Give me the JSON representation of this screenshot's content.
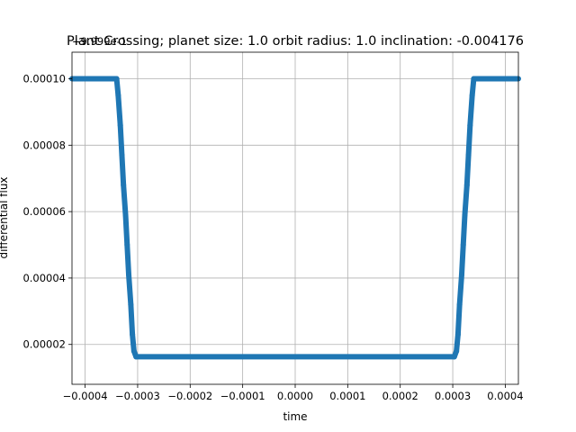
{
  "chart_data": {
    "type": "scatter",
    "title": "Plant Crossing; planet size: 1.0 orbit radius: 1.0 inclination: -0.004176",
    "xlabel": "time",
    "ylabel": "differential flux",
    "y_offset_label": "+9.999e-1",
    "xlim": [
      -0.000425,
      0.000425
    ],
    "ylim": [
      8e-06,
      0.000108
    ],
    "grid": true,
    "x_ticks": [
      -0.0004,
      -0.0003,
      -0.0002,
      -0.0001,
      0.0,
      0.0001,
      0.0002,
      0.0003,
      0.0004
    ],
    "x_tick_labels": [
      "−0.0004",
      "−0.0003",
      "−0.0002",
      "−0.0001",
      "0.0000",
      "0.0001",
      "0.0002",
      "0.0003",
      "0.0004"
    ],
    "y_ticks": [
      2e-05,
      4e-05,
      6e-05,
      8e-05,
      0.0001
    ],
    "y_tick_labels": [
      "0.00002",
      "0.00004",
      "0.00006",
      "0.00008",
      "0.00010"
    ],
    "series": [
      {
        "color": "#1f77b4",
        "x": [
          -0.000425,
          -0.00034,
          -0.000337,
          -0.000333,
          -0.00033,
          -0.000327,
          -0.000323,
          -0.00032,
          -0.000317,
          -0.000313,
          -0.00031,
          -0.000307,
          -0.000303,
          0.000303,
          0.000307,
          0.00031,
          0.000313,
          0.000317,
          0.00032,
          0.000323,
          0.000327,
          0.00033,
          0.000333,
          0.000337,
          0.00034,
          0.000425
        ],
        "y": [
          0.0001,
          0.0001,
          9.5e-05,
          8.6e-05,
          7.7e-05,
          6.8e-05,
          5.9e-05,
          5e-05,
          4.1e-05,
          3.2e-05,
          2.3e-05,
          1.8e-05,
          1.63e-05,
          1.63e-05,
          1.8e-05,
          2.3e-05,
          3.2e-05,
          4.1e-05,
          5e-05,
          5.9e-05,
          6.8e-05,
          7.7e-05,
          8.6e-05,
          9.5e-05,
          0.0001,
          0.0001
        ]
      }
    ]
  }
}
